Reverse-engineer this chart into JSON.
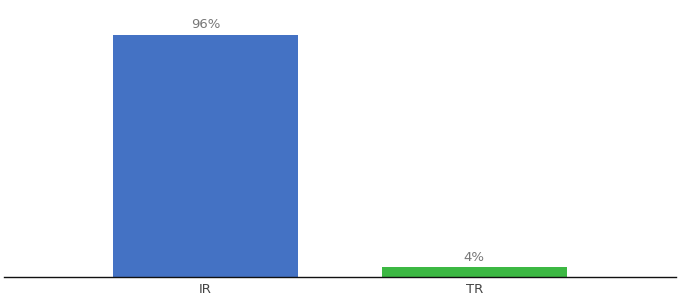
{
  "categories": [
    "IR",
    "TR"
  ],
  "values": [
    96,
    4
  ],
  "bar_colors": [
    "#4472c4",
    "#3cb843"
  ],
  "labels": [
    "96%",
    "4%"
  ],
  "background_color": "#ffffff",
  "ylim": [
    0,
    108
  ],
  "bar_width": 0.55,
  "xlim": [
    -0.3,
    1.7
  ],
  "tick_fontsize": 9.5,
  "label_fontsize": 9.5,
  "label_color": "#777777"
}
